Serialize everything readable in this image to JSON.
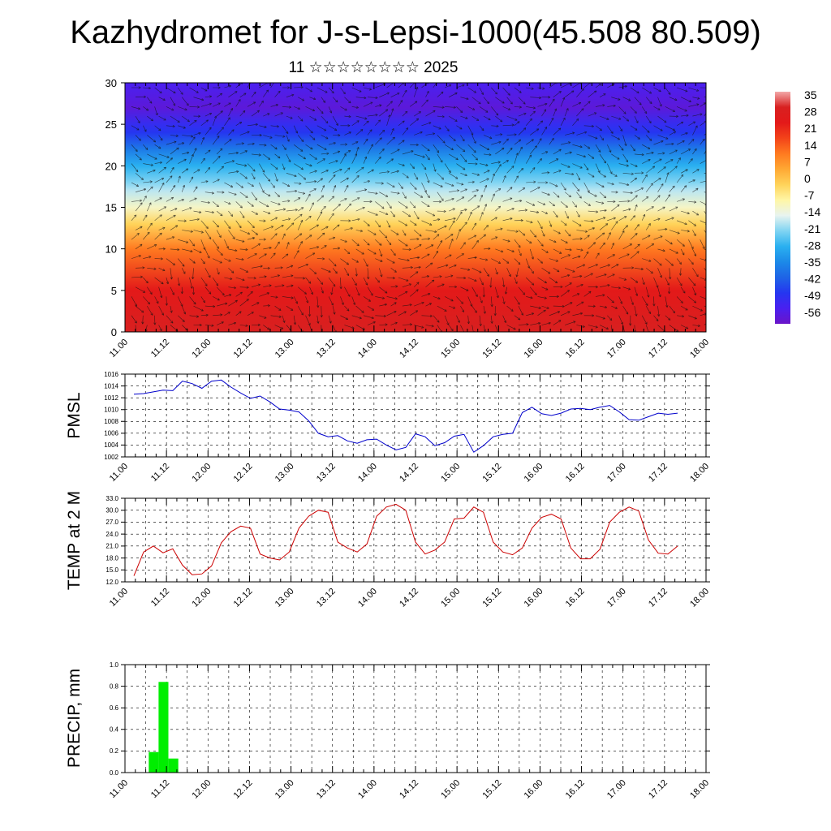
{
  "header": {
    "title": "Kazhydromet for J-s-Lepsi-1000(45.508 80.509)",
    "subtitle": "11 ☆☆☆☆☆☆☆☆ 2025"
  },
  "chart_data": [
    {
      "type": "heatmap",
      "title": "",
      "xlabel": "",
      "ylabel": "",
      "x_tick_labels": [
        "11.00",
        "11.12",
        "12.00",
        "12.12",
        "13.00",
        "13.12",
        "14.00",
        "14.12",
        "15.00",
        "15.12",
        "16.00",
        "16.12",
        "17.00",
        "17.12",
        "18.00"
      ],
      "y_ticks": [
        0,
        5,
        10,
        15,
        20,
        25,
        30
      ],
      "ylim": [
        0,
        30
      ],
      "colorbar": {
        "labels": [
          "35",
          "28",
          "21",
          "14",
          "7",
          "0",
          "-7",
          "-14",
          "-21",
          "-28",
          "-35",
          "-42",
          "-49",
          "-56"
        ],
        "range": [
          -63,
          42
        ]
      },
      "temperature_profile": {
        "levels": [
          0,
          5,
          10,
          13,
          15,
          17,
          18,
          20,
          22,
          24,
          25,
          27,
          30
        ],
        "values": [
          35,
          28,
          14,
          0,
          -10,
          -17,
          -21,
          -28,
          -38,
          -49,
          -52,
          -60,
          -56
        ]
      },
      "overlay": "wind vectors"
    },
    {
      "type": "line",
      "ylabel": "PMSL",
      "x_tick_labels": [
        "11.00",
        "11.12",
        "12.00",
        "12.12",
        "13.00",
        "13.12",
        "14.00",
        "14.12",
        "15.00",
        "15.12",
        "16.00",
        "16.12",
        "17.00",
        "17.12",
        "18.00"
      ],
      "y_ticks": [
        "1002",
        "1004",
        "1006",
        "1008",
        "1010",
        "1012",
        "1014",
        "1016"
      ],
      "ylim": [
        1002,
        1016
      ],
      "grid": true,
      "series": [
        {
          "color": "#0000cc",
          "values": [
            1012.6,
            1012.7,
            1013.0,
            1013.3,
            1013.2,
            1014.8,
            1014.4,
            1013.6,
            1014.8,
            1015.0,
            1013.8,
            1012.8,
            1011.9,
            1012.3,
            1011.3,
            1010.1,
            1009.9,
            1009.6,
            1008.1,
            1006.0,
            1005.4,
            1005.6,
            1004.7,
            1004.3,
            1004.9,
            1005.0,
            1004.0,
            1003.2,
            1003.6,
            1005.9,
            1005.4,
            1003.9,
            1004.4,
            1005.5,
            1005.8,
            1002.8,
            1003.9,
            1005.4,
            1005.8,
            1006.0,
            1009.5,
            1010.4,
            1009.3,
            1009.0,
            1009.4,
            1010.1,
            1010.2,
            1010.0,
            1010.4,
            1010.7,
            1009.6,
            1008.3,
            1008.2,
            1008.8,
            1009.4,
            1009.2,
            1009.4
          ]
        }
      ]
    },
    {
      "type": "line",
      "ylabel": "TEMP at 2 M",
      "x_tick_labels": [
        "11.00",
        "11.12",
        "12.00",
        "12.12",
        "13.00",
        "13.12",
        "14.00",
        "14.12",
        "15.00",
        "15.12",
        "16.00",
        "16.12",
        "17.00",
        "17.12",
        "18.00"
      ],
      "y_ticks": [
        "12.0",
        "15.0",
        "18.0",
        "21.0",
        "24.0",
        "27.0",
        "30.0",
        "33.0"
      ],
      "ylim": [
        12,
        33
      ],
      "grid": true,
      "series": [
        {
          "color": "#cc0000",
          "values": [
            13.5,
            19.5,
            21.0,
            19.3,
            20.3,
            16.2,
            13.8,
            14.0,
            16.0,
            21.8,
            24.6,
            26.0,
            25.5,
            19.0,
            18.0,
            17.5,
            19.5,
            25.5,
            28.5,
            30.0,
            29.5,
            22.0,
            20.5,
            19.5,
            21.5,
            28.5,
            30.8,
            31.5,
            30.0,
            22.0,
            19.0,
            20.0,
            22.0,
            27.8,
            28.0,
            30.8,
            29.5,
            22.0,
            19.5,
            18.8,
            20.5,
            25.5,
            28.2,
            29.0,
            27.8,
            20.5,
            17.8,
            17.8,
            20.2,
            27.0,
            29.5,
            30.8,
            29.8,
            22.5,
            19.2,
            19.0,
            21.0
          ]
        }
      ]
    },
    {
      "type": "bar",
      "ylabel": "PRECIP, mm",
      "x_tick_labels": [
        "11.00",
        "11.12",
        "12.00",
        "12.12",
        "13.00",
        "13.12",
        "14.00",
        "14.12",
        "15.00",
        "15.12",
        "16.00",
        "16.12",
        "17.00",
        "17.12",
        "18.00"
      ],
      "y_ticks": [
        "0.0",
        "0.2",
        "0.4",
        "0.6",
        "0.8",
        "1.0"
      ],
      "ylim": [
        0,
        1
      ],
      "grid": true,
      "bar_color": "#00ee00",
      "x": [
        2,
        3,
        4
      ],
      "values": [
        0.19,
        0.84,
        0.13
      ]
    }
  ]
}
